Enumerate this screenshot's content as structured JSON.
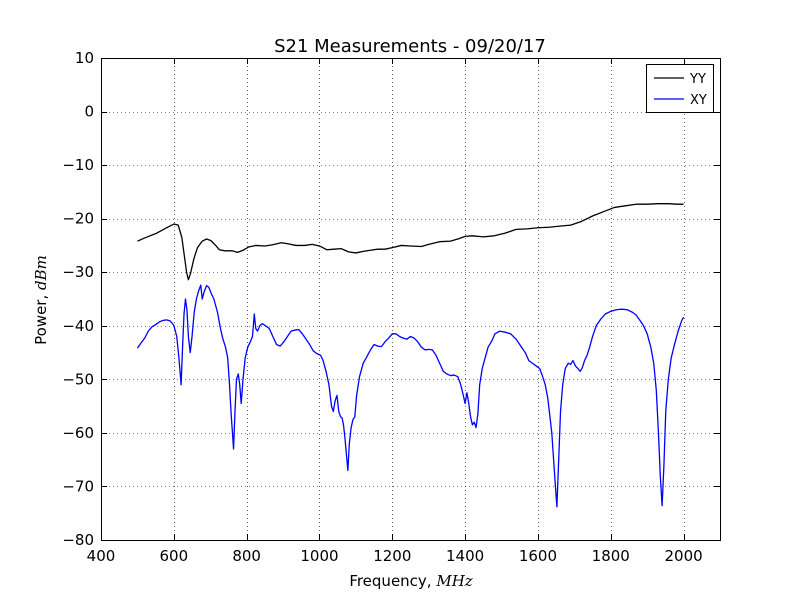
{
  "chart_data": {
    "type": "line",
    "title": "S21 Measurements - 09/20/17",
    "xlabel_prefix": "Frequency, ",
    "xlabel_unit": "MHz",
    "ylabel_prefix": "Power, ",
    "ylabel_unit": "dBm",
    "xlim": [
      400,
      2100
    ],
    "ylim": [
      -80,
      10
    ],
    "xticks": [
      400,
      600,
      800,
      1000,
      1200,
      1400,
      1600,
      1800,
      2000
    ],
    "yticks": [
      10,
      0,
      -10,
      -20,
      -30,
      -40,
      -50,
      -60,
      -70,
      -80
    ],
    "xtick_labels": [
      "400",
      "600",
      "800",
      "1000",
      "1200",
      "1400",
      "1600",
      "1800",
      "2000"
    ],
    "ytick_labels": [
      "10",
      "0",
      "−10",
      "−20",
      "−30",
      "−40",
      "−50",
      "−60",
      "−70",
      "−80"
    ],
    "grid": true,
    "grid_style": "dotted",
    "legend_position": "top-right",
    "series": [
      {
        "name": "YY",
        "color": "#000000",
        "points": [
          [
            500,
            -24.2
          ],
          [
            520,
            -23.6
          ],
          [
            550,
            -22.8
          ],
          [
            580,
            -21.7
          ],
          [
            600,
            -21.0
          ],
          [
            612,
            -21.2
          ],
          [
            622,
            -23.5
          ],
          [
            630,
            -27.5
          ],
          [
            635,
            -30.0
          ],
          [
            640,
            -31.4
          ],
          [
            646,
            -30.2
          ],
          [
            655,
            -27.5
          ],
          [
            665,
            -25.4
          ],
          [
            678,
            -24.2
          ],
          [
            690,
            -23.8
          ],
          [
            702,
            -24.1
          ],
          [
            715,
            -25.0
          ],
          [
            725,
            -25.8
          ],
          [
            740,
            -26.0
          ],
          [
            760,
            -26.0
          ],
          [
            775,
            -26.3
          ],
          [
            790,
            -25.9
          ],
          [
            805,
            -25.3
          ],
          [
            825,
            -25.0
          ],
          [
            850,
            -25.1
          ],
          [
            870,
            -24.9
          ],
          [
            895,
            -24.5
          ],
          [
            915,
            -24.7
          ],
          [
            935,
            -25.0
          ],
          [
            960,
            -25.0
          ],
          [
            980,
            -24.8
          ],
          [
            1000,
            -25.1
          ],
          [
            1020,
            -25.8
          ],
          [
            1040,
            -25.7
          ],
          [
            1060,
            -25.6
          ],
          [
            1080,
            -26.2
          ],
          [
            1100,
            -26.4
          ],
          [
            1120,
            -26.1
          ],
          [
            1140,
            -25.9
          ],
          [
            1160,
            -25.7
          ],
          [
            1180,
            -25.7
          ],
          [
            1200,
            -25.4
          ],
          [
            1225,
            -25.0
          ],
          [
            1250,
            -25.1
          ],
          [
            1280,
            -25.2
          ],
          [
            1300,
            -24.8
          ],
          [
            1330,
            -24.3
          ],
          [
            1360,
            -24.2
          ],
          [
            1380,
            -23.8
          ],
          [
            1400,
            -23.3
          ],
          [
            1420,
            -23.2
          ],
          [
            1450,
            -23.4
          ],
          [
            1480,
            -23.2
          ],
          [
            1510,
            -22.7
          ],
          [
            1540,
            -22.0
          ],
          [
            1570,
            -21.9
          ],
          [
            1600,
            -21.7
          ],
          [
            1630,
            -21.6
          ],
          [
            1660,
            -21.4
          ],
          [
            1690,
            -21.2
          ],
          [
            1720,
            -20.5
          ],
          [
            1750,
            -19.5
          ],
          [
            1780,
            -18.7
          ],
          [
            1810,
            -17.9
          ],
          [
            1840,
            -17.6
          ],
          [
            1870,
            -17.3
          ],
          [
            1900,
            -17.3
          ],
          [
            1930,
            -17.2
          ],
          [
            1960,
            -17.2
          ],
          [
            1980,
            -17.3
          ],
          [
            2000,
            -17.3
          ]
        ]
      },
      {
        "name": "XY",
        "color": "#0000ff",
        "points": [
          [
            500,
            -44.2
          ],
          [
            510,
            -43.2
          ],
          [
            520,
            -42.3
          ],
          [
            530,
            -41.0
          ],
          [
            540,
            -40.2
          ],
          [
            550,
            -39.8
          ],
          [
            560,
            -39.3
          ],
          [
            570,
            -39.0
          ],
          [
            580,
            -38.9
          ],
          [
            590,
            -39.1
          ],
          [
            600,
            -39.9
          ],
          [
            608,
            -42.0
          ],
          [
            614,
            -46.0
          ],
          [
            620,
            -51.0
          ],
          [
            624,
            -44.0
          ],
          [
            628,
            -37.8
          ],
          [
            632,
            -35.0
          ],
          [
            636,
            -37.0
          ],
          [
            640,
            -42.0
          ],
          [
            645,
            -45.0
          ],
          [
            650,
            -42.0
          ],
          [
            656,
            -37.5
          ],
          [
            662,
            -35.0
          ],
          [
            668,
            -33.5
          ],
          [
            674,
            -32.4
          ],
          [
            678,
            -35.0
          ],
          [
            684,
            -33.5
          ],
          [
            690,
            -32.5
          ],
          [
            696,
            -32.8
          ],
          [
            703,
            -34.0
          ],
          [
            710,
            -35.0
          ],
          [
            720,
            -37.5
          ],
          [
            728,
            -40.5
          ],
          [
            735,
            -42.5
          ],
          [
            742,
            -44.0
          ],
          [
            748,
            -46.0
          ],
          [
            753,
            -51.0
          ],
          [
            757,
            -56.0
          ],
          [
            761,
            -60.0
          ],
          [
            764,
            -63.0
          ],
          [
            768,
            -56.0
          ],
          [
            772,
            -50.0
          ],
          [
            777,
            -49.0
          ],
          [
            781,
            -51.0
          ],
          [
            785,
            -54.5
          ],
          [
            790,
            -50.0
          ],
          [
            796,
            -46.0
          ],
          [
            803,
            -44.0
          ],
          [
            810,
            -43.0
          ],
          [
            816,
            -42.0
          ],
          [
            821,
            -37.8
          ],
          [
            825,
            -40.5
          ],
          [
            830,
            -41.0
          ],
          [
            836,
            -40.0
          ],
          [
            843,
            -39.6
          ],
          [
            852,
            -40.0
          ],
          [
            862,
            -40.5
          ],
          [
            872,
            -42.0
          ],
          [
            882,
            -43.5
          ],
          [
            892,
            -43.8
          ],
          [
            902,
            -43.0
          ],
          [
            912,
            -42.0
          ],
          [
            922,
            -41.0
          ],
          [
            933,
            -40.8
          ],
          [
            943,
            -40.7
          ],
          [
            953,
            -41.5
          ],
          [
            963,
            -42.5
          ],
          [
            973,
            -43.5
          ],
          [
            983,
            -44.7
          ],
          [
            993,
            -45.2
          ],
          [
            1003,
            -45.5
          ],
          [
            1010,
            -46.5
          ],
          [
            1018,
            -48.5
          ],
          [
            1026,
            -51.0
          ],
          [
            1033,
            -55.0
          ],
          [
            1038,
            -56.0
          ],
          [
            1043,
            -54.0
          ],
          [
            1048,
            -53.0
          ],
          [
            1053,
            -56.0
          ],
          [
            1058,
            -57.0
          ],
          [
            1062,
            -57.2
          ],
          [
            1066,
            -58.5
          ],
          [
            1070,
            -61.0
          ],
          [
            1074,
            -64.0
          ],
          [
            1078,
            -67.0
          ],
          [
            1082,
            -62.0
          ],
          [
            1087,
            -59.0
          ],
          [
            1092,
            -57.5
          ],
          [
            1097,
            -57.0
          ],
          [
            1102,
            -53.0
          ],
          [
            1110,
            -49.5
          ],
          [
            1120,
            -47.0
          ],
          [
            1130,
            -45.8
          ],
          [
            1140,
            -44.5
          ],
          [
            1150,
            -43.5
          ],
          [
            1160,
            -43.8
          ],
          [
            1170,
            -43.9
          ],
          [
            1180,
            -43.0
          ],
          [
            1190,
            -42.3
          ],
          [
            1200,
            -41.5
          ],
          [
            1210,
            -41.5
          ],
          [
            1220,
            -42.0
          ],
          [
            1230,
            -42.3
          ],
          [
            1240,
            -42.5
          ],
          [
            1250,
            -42.0
          ],
          [
            1260,
            -42.3
          ],
          [
            1270,
            -43.0
          ],
          [
            1280,
            -44.0
          ],
          [
            1290,
            -44.5
          ],
          [
            1300,
            -44.4
          ],
          [
            1310,
            -44.5
          ],
          [
            1320,
            -45.5
          ],
          [
            1330,
            -47.0
          ],
          [
            1340,
            -48.5
          ],
          [
            1350,
            -49.0
          ],
          [
            1360,
            -49.3
          ],
          [
            1370,
            -49.2
          ],
          [
            1380,
            -49.5
          ],
          [
            1388,
            -51.0
          ],
          [
            1395,
            -53.0
          ],
          [
            1400,
            -54.5
          ],
          [
            1405,
            -52.5
          ],
          [
            1410,
            -54.5
          ],
          [
            1415,
            -57.0
          ],
          [
            1420,
            -58.5
          ],
          [
            1425,
            -58.0
          ],
          [
            1430,
            -59.0
          ],
          [
            1435,
            -56.5
          ],
          [
            1440,
            -51.0
          ],
          [
            1447,
            -48.0
          ],
          [
            1455,
            -46.0
          ],
          [
            1463,
            -44.0
          ],
          [
            1472,
            -43.0
          ],
          [
            1482,
            -41.5
          ],
          [
            1495,
            -41.0
          ],
          [
            1510,
            -41.2
          ],
          [
            1525,
            -41.5
          ],
          [
            1540,
            -42.5
          ],
          [
            1555,
            -44.0
          ],
          [
            1565,
            -45.0
          ],
          [
            1575,
            -46.5
          ],
          [
            1585,
            -47.0
          ],
          [
            1595,
            -47.5
          ],
          [
            1605,
            -48.0
          ],
          [
            1613,
            -49.5
          ],
          [
            1620,
            -51.0
          ],
          [
            1627,
            -53.5
          ],
          [
            1633,
            -57.0
          ],
          [
            1638,
            -60.0
          ],
          [
            1643,
            -65.0
          ],
          [
            1648,
            -70.0
          ],
          [
            1652,
            -73.8
          ],
          [
            1657,
            -65.0
          ],
          [
            1662,
            -56.0
          ],
          [
            1668,
            -51.0
          ],
          [
            1675,
            -48.0
          ],
          [
            1683,
            -47.0
          ],
          [
            1690,
            -47.2
          ],
          [
            1696,
            -46.5
          ],
          [
            1703,
            -47.5
          ],
          [
            1710,
            -48.0
          ],
          [
            1716,
            -48.5
          ],
          [
            1722,
            -47.8
          ],
          [
            1728,
            -46.5
          ],
          [
            1735,
            -45.5
          ],
          [
            1742,
            -44.0
          ],
          [
            1750,
            -42.0
          ],
          [
            1760,
            -40.0
          ],
          [
            1772,
            -38.8
          ],
          [
            1785,
            -37.8
          ],
          [
            1800,
            -37.3
          ],
          [
            1815,
            -37.0
          ],
          [
            1830,
            -36.9
          ],
          [
            1845,
            -37.0
          ],
          [
            1860,
            -37.5
          ],
          [
            1870,
            -38.0
          ],
          [
            1880,
            -39.0
          ],
          [
            1890,
            -40.0
          ],
          [
            1900,
            -41.5
          ],
          [
            1910,
            -44.0
          ],
          [
            1918,
            -47.0
          ],
          [
            1925,
            -52.0
          ],
          [
            1931,
            -60.0
          ],
          [
            1936,
            -68.0
          ],
          [
            1941,
            -73.6
          ],
          [
            1946,
            -66.0
          ],
          [
            1951,
            -56.0
          ],
          [
            1958,
            -50.0
          ],
          [
            1966,
            -46.0
          ],
          [
            1975,
            -43.5
          ],
          [
            1985,
            -41.0
          ],
          [
            1995,
            -39.0
          ],
          [
            2000,
            -38.4
          ]
        ]
      }
    ]
  }
}
